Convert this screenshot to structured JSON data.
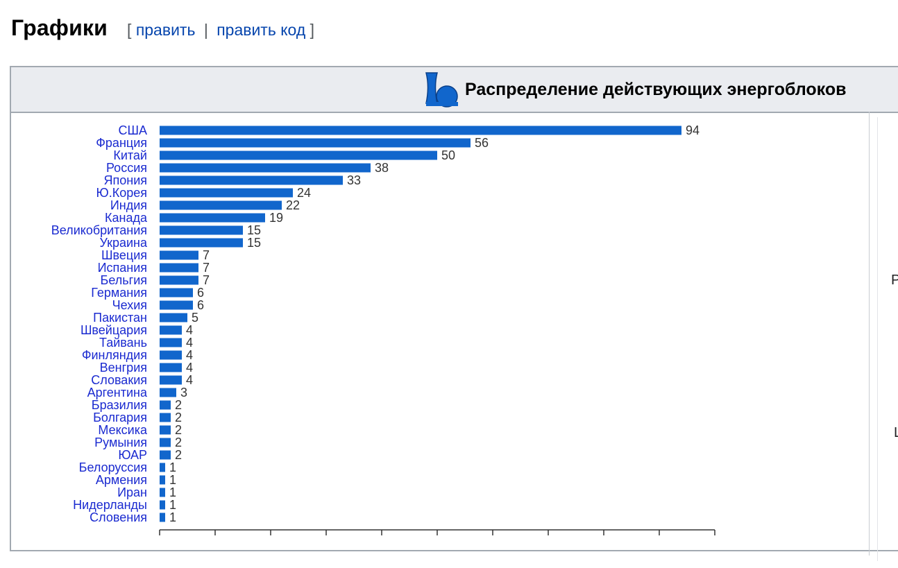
{
  "section": {
    "heading": "Графики",
    "edit_open": "[",
    "edit_link": "править",
    "separator": "|",
    "edit_code_link": "править код",
    "edit_close": "]"
  },
  "box": {
    "title": "Распределение действующих энергоблоков",
    "icon": "reactor-cooling-tower-icon",
    "right_col_letters": [
      "Р",
      "Ц"
    ]
  },
  "colors": {
    "bar": "#1166cc",
    "category_text": "#1a2ad0",
    "link": "#0645ad",
    "header_bg": "#eaecf0"
  },
  "chart_data": {
    "type": "bar",
    "orientation": "horizontal",
    "categories": [
      "США",
      "Франция",
      "Китай",
      "Россия",
      "Япония",
      "Ю.Корея",
      "Индия",
      "Канада",
      "Великобритания",
      "Украина",
      "Швеция",
      "Испания",
      "Бельгия",
      "Германия",
      "Чехия",
      "Пакистан",
      "Швейцария",
      "Тайвань",
      "Финляндия",
      "Венгрия",
      "Словакия",
      "Аргентина",
      "Бразилия",
      "Болгария",
      "Мексика",
      "Румыния",
      "ЮАР",
      "Белоруссия",
      "Армения",
      "Иран",
      "Нидерланды",
      "Словения"
    ],
    "values": [
      94,
      56,
      50,
      38,
      33,
      24,
      22,
      19,
      15,
      15,
      7,
      7,
      7,
      6,
      6,
      5,
      4,
      4,
      4,
      4,
      4,
      3,
      2,
      2,
      2,
      2,
      2,
      1,
      1,
      1,
      1,
      1
    ],
    "data_labels": [
      "94",
      "56",
      "50",
      "38",
      "33",
      "24",
      "22",
      "19",
      "15",
      "15",
      "7",
      "7",
      "7",
      "6",
      "6",
      "5",
      "4",
      "4",
      "4",
      "4",
      "4",
      "3",
      "2",
      "2",
      "2",
      "2",
      "2",
      "1",
      "1",
      "1",
      "1",
      "1"
    ],
    "xlim": [
      0,
      100
    ],
    "grid": false,
    "legend": "none"
  }
}
